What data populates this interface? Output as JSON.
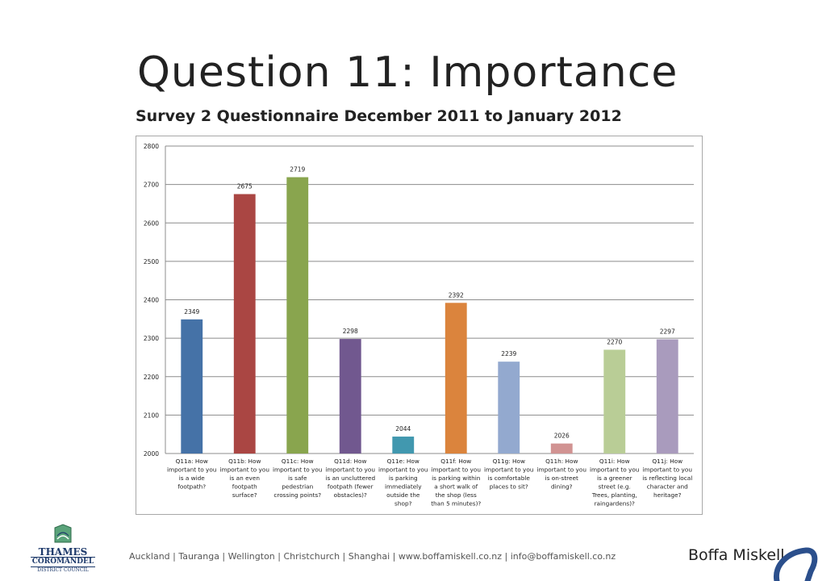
{
  "slide": {
    "title": "Question 11: Importance",
    "subtitle": "Survey 2 Questionnaire December 2011 to January 2012"
  },
  "footer": {
    "offices_text": "Auckland  |  Tauranga  |  Wellington  |  Christchurch  |  Shanghai   |  www.boffamiskell.co.nz   |  info@boffamiskell.co.nz",
    "brand": "Boffa Miskell",
    "council_logo": {
      "line1": "THAMES",
      "line2": "COROMANDEL",
      "line3": "DISTRICT COUNCIL"
    }
  },
  "colors": {
    "bars": [
      "#4572a7",
      "#aa4643",
      "#89a54e",
      "#71588f",
      "#4198af",
      "#db843d",
      "#93a9cf",
      "#d19392",
      "#b9cd96",
      "#a99bbd"
    ],
    "grid": "#8c8c8c",
    "brand_blue": "#2b4f8c"
  },
  "chart_data": {
    "type": "bar",
    "categories": [
      [
        "Q11a: How",
        "important to you",
        "is a wide",
        "footpath?"
      ],
      [
        "Q11b: How",
        "important to you",
        "is an even",
        "footpath",
        "surface?"
      ],
      [
        "Q11c: How",
        "important to you",
        "is safe",
        "pedestrian",
        "crossing points?"
      ],
      [
        "Q11d: How",
        "important to you",
        "is an uncluttered",
        "footpath (fewer",
        "obstacles)?"
      ],
      [
        "Q11e: How",
        "important to you",
        "is parking",
        "immediately",
        "outside the",
        "shop?"
      ],
      [
        "Q11f: How",
        "important to you",
        "is parking within",
        "a short walk of",
        "the shop (less",
        "than 5 minutes)?"
      ],
      [
        "Q11g: How",
        "important to you",
        "is comfortable",
        "places to sit?"
      ],
      [
        "Q11h: How",
        "important to you",
        "is on-street",
        "dining?"
      ],
      [
        "Q11i: How",
        "important to you",
        "is a greener",
        "street (e.g.",
        "Trees, planting,",
        "raingardens)?"
      ],
      [
        "Q11j: How",
        "important to you",
        "is reflecting local",
        "character and",
        "heritage?"
      ]
    ],
    "values": [
      2349,
      2675,
      2719,
      2298,
      2044,
      2392,
      2239,
      2026,
      2270,
      2297
    ],
    "ylim": [
      2000,
      2800
    ],
    "yticks": [
      2000,
      2100,
      2200,
      2300,
      2400,
      2500,
      2600,
      2700,
      2800
    ],
    "grid": true,
    "data_labels": true
  }
}
